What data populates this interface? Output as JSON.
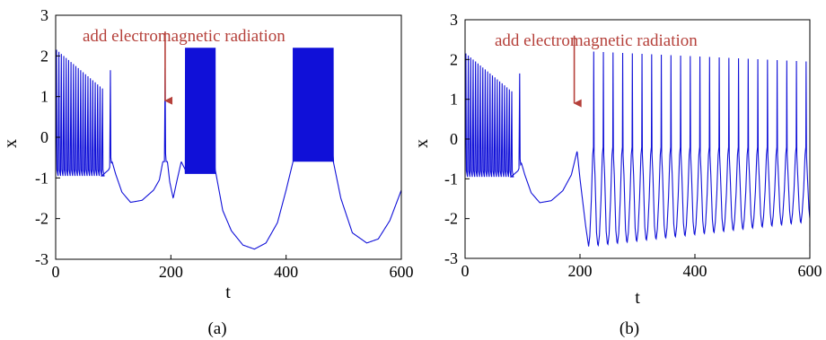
{
  "colors": {
    "trace": "#1010d8",
    "annotation": "#b5403a",
    "axis": "#000000",
    "background": "#ffffff"
  },
  "chart_data": [
    {
      "panel_label": "(a)",
      "type": "line",
      "xlabel": "t",
      "ylabel": "x",
      "xlim": [
        0,
        600
      ],
      "ylim": [
        -3,
        3
      ],
      "xticks": [
        "0",
        "200",
        "400",
        "600"
      ],
      "yticks": [
        "-3",
        "-2",
        "-1",
        "0",
        "1",
        "2",
        "3"
      ],
      "grid": false,
      "annotation": {
        "text": "add electromagnetic radiation",
        "arrow_x": 190,
        "arrow_y": 0.9
      },
      "series": [
        {
          "bursts": [
            {
              "from": 0,
              "to": 80,
              "period": 4.2,
              "low": -0.95,
              "high": 2.15,
              "decay": 0.05
            },
            {
              "from": 225,
              "to": 277,
              "period": 1.05,
              "low": -0.9,
              "high": 2.2,
              "decay": 0
            },
            {
              "from": 412,
              "to": 482,
              "period": 1.05,
              "low": -0.6,
              "high": 2.2,
              "decay": 0
            }
          ],
          "isolated_spikes": [
            {
              "x": 95,
              "peak": 1.65,
              "base": -0.5
            },
            {
              "x": 190,
              "peak": 1.7,
              "base": -0.4
            }
          ],
          "trough": [
            [
              80,
              -0.95
            ],
            [
              92,
              -0.8
            ],
            [
              98,
              -0.6
            ],
            [
              104,
              -0.9
            ],
            [
              115,
              -1.35
            ],
            [
              130,
              -1.6
            ],
            [
              150,
              -1.55
            ],
            [
              170,
              -1.3
            ],
            [
              180,
              -1.05
            ],
            [
              186,
              -0.6
            ],
            [
              194,
              -0.6
            ],
            [
              198,
              -1.1
            ],
            [
              204,
              -1.5
            ],
            [
              210,
              -1.1
            ],
            [
              218,
              -0.6
            ],
            [
              225,
              -0.8
            ],
            [
              277,
              -0.8
            ],
            [
              290,
              -1.8
            ],
            [
              305,
              -2.3
            ],
            [
              325,
              -2.65
            ],
            [
              345,
              -2.75
            ],
            [
              365,
              -2.6
            ],
            [
              385,
              -2.1
            ],
            [
              400,
              -1.3
            ],
            [
              412,
              -0.6
            ],
            [
              482,
              -0.6
            ],
            [
              495,
              -1.5
            ],
            [
              515,
              -2.35
            ],
            [
              540,
              -2.6
            ],
            [
              560,
              -2.5
            ],
            [
              580,
              -2.05
            ],
            [
              600,
              -1.3
            ]
          ]
        }
      ]
    },
    {
      "panel_label": "(b)",
      "type": "line",
      "xlabel": "t",
      "ylabel": "x",
      "xlim": [
        0,
        600
      ],
      "ylim": [
        -3,
        3
      ],
      "xticks": [
        "0",
        "200",
        "400",
        "600"
      ],
      "yticks": [
        "-3",
        "-2",
        "-1",
        "0",
        "1",
        "2",
        "3"
      ],
      "grid": false,
      "annotation": {
        "text": "add electromagnetic radiation",
        "arrow_x": 190,
        "arrow_y": 0.9
      },
      "series": [
        {
          "bursts": [
            {
              "from": 0,
              "to": 80,
              "period": 4.2,
              "low": -0.95,
              "high": 2.15,
              "decay": 0.05
            }
          ],
          "isolated_spikes": [
            {
              "x": 95,
              "peak": 1.65,
              "base": -0.5
            }
          ],
          "trough": [
            [
              80,
              -0.95
            ],
            [
              92,
              -0.8
            ],
            [
              98,
              -0.6
            ],
            [
              104,
              -0.9
            ],
            [
              115,
              -1.35
            ],
            [
              130,
              -1.6
            ],
            [
              150,
              -1.55
            ],
            [
              170,
              -1.3
            ],
            [
              185,
              -0.9
            ],
            [
              195,
              -0.3
            ],
            [
              200,
              -1.0
            ],
            [
              210,
              -2.2
            ],
            [
              215,
              -2.7
            ]
          ],
          "oscillation": {
            "from": 215,
            "to": 600,
            "period": 16.8,
            "peak_start": 2.2,
            "peak_end": 1.95,
            "min_start": -2.7,
            "min_end": -2.1,
            "shoulder": -0.4
          }
        }
      ]
    }
  ]
}
